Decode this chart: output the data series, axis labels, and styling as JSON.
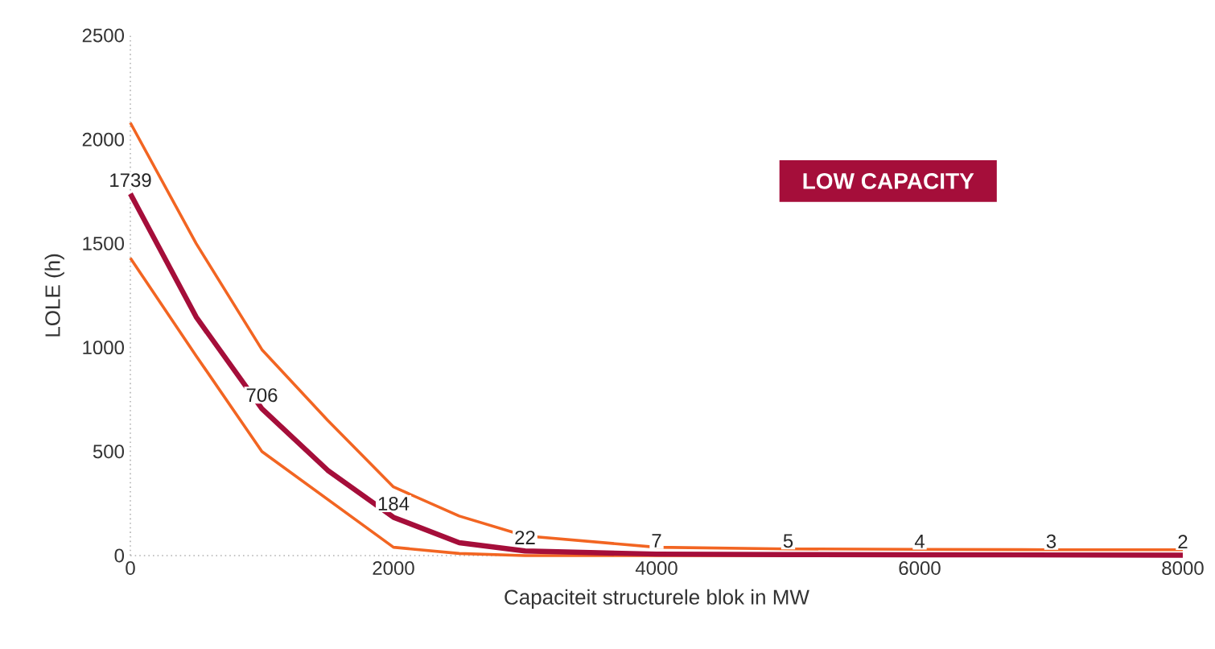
{
  "chart_data": {
    "type": "line",
    "xlabel": "Capaciteit structurele blok in MW",
    "ylabel": "LOLE (h)",
    "annotations": [
      "LOW CAPACITY"
    ],
    "x": [
      0,
      500,
      1000,
      1500,
      2000,
      2500,
      3000,
      4000,
      5000,
      6000,
      7000,
      8000
    ],
    "series": [
      {
        "color": "#f26522",
        "values": [
          2080,
          1500,
          990,
          650,
          330,
          190,
          95,
          40,
          32,
          30,
          28,
          28
        ]
      },
      {
        "color": "#f26522",
        "values": [
          1430,
          960,
          500,
          270,
          40,
          10,
          0,
          0,
          0,
          0,
          0,
          0
        ]
      },
      {
        "color": "#a50e3a",
        "values": [
          1739,
          1147,
          706,
          410,
          184,
          62,
          22,
          7,
          5,
          4,
          3,
          2
        ],
        "value_labels": [
          "1739",
          null,
          "706",
          null,
          "184",
          null,
          "22",
          "7",
          "5",
          "4",
          "3",
          "2"
        ]
      }
    ],
    "xlim": [
      0,
      8000
    ],
    "ylim": [
      0,
      2500
    ],
    "xticks": [
      0,
      2000,
      4000,
      6000,
      8000
    ],
    "yticks": [
      0,
      500,
      1000,
      1500,
      2000,
      2500
    ],
    "grid": false,
    "marker": "none",
    "line_style": "solid"
  }
}
